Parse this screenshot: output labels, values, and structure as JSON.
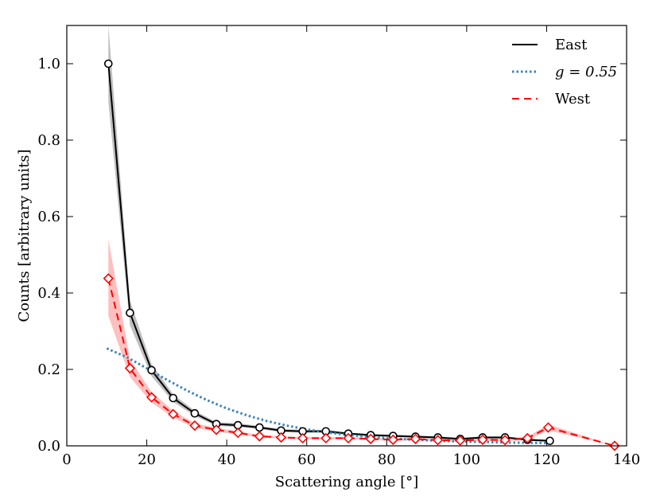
{
  "chart_data": {
    "type": "line",
    "title": "",
    "xlabel": "Scattering angle [°]",
    "ylabel": "Counts [arbitrary units]",
    "xlim": [
      0,
      140
    ],
    "ylim": [
      0,
      1.1
    ],
    "xticks": [
      0,
      20,
      40,
      60,
      80,
      100,
      120,
      140
    ],
    "yticks": [
      0.0,
      0.2,
      0.4,
      0.6,
      0.8,
      1.0
    ],
    "xtick_labels": [
      "0",
      "20",
      "40",
      "60",
      "80",
      "100",
      "120",
      "140"
    ],
    "ytick_labels": [
      "0.0",
      "0.2",
      "0.4",
      "0.6",
      "0.8",
      "1.0"
    ],
    "grid": false,
    "legend_position": "top-right",
    "series": [
      {
        "name": "East",
        "style": "solid",
        "color": "#000000",
        "marker": "circle",
        "band_color": "#aaaaaa",
        "x": [
          10.4,
          15.8,
          21.2,
          26.6,
          32.0,
          37.4,
          42.8,
          48.2,
          53.6,
          59.0,
          64.8,
          70.4,
          76.0,
          81.6,
          87.2,
          92.8,
          98.4,
          104.0,
          109.6,
          115.2,
          120.8
        ],
        "values": [
          1.0,
          0.348,
          0.198,
          0.125,
          0.085,
          0.057,
          0.054,
          0.048,
          0.04,
          0.038,
          0.038,
          0.032,
          0.028,
          0.026,
          0.024,
          0.022,
          0.018,
          0.022,
          0.022,
          0.016,
          0.013
        ],
        "band_low": [
          0.9,
          0.315,
          0.182,
          0.115,
          0.078,
          0.052,
          0.049,
          0.044,
          0.036,
          0.034,
          0.034,
          0.029,
          0.025,
          0.023,
          0.021,
          0.019,
          0.015,
          0.019,
          0.019,
          0.013,
          0.01
        ],
        "band_high": [
          1.1,
          0.38,
          0.214,
          0.135,
          0.092,
          0.062,
          0.059,
          0.052,
          0.044,
          0.042,
          0.042,
          0.035,
          0.031,
          0.029,
          0.027,
          0.025,
          0.021,
          0.025,
          0.025,
          0.019,
          0.016
        ]
      },
      {
        "name": "g = 0.55",
        "style": "dotted",
        "color": "#3b86b8",
        "marker": "none",
        "x": [
          10,
          15,
          20,
          25,
          30,
          35,
          40,
          45,
          50,
          55,
          60,
          65,
          70,
          75,
          80,
          85,
          90,
          95,
          100,
          105,
          110,
          115,
          120
        ],
        "values": [
          0.255,
          0.232,
          0.203,
          0.173,
          0.145,
          0.12,
          0.098,
          0.08,
          0.065,
          0.053,
          0.043,
          0.035,
          0.029,
          0.024,
          0.02,
          0.017,
          0.0145,
          0.0125,
          0.011,
          0.0098,
          0.0088,
          0.008,
          0.0073
        ]
      },
      {
        "name": "West",
        "style": "dashed",
        "color": "#ff0000",
        "marker": "diamond",
        "band_color": "#ffaaaa",
        "x": [
          10.4,
          15.8,
          21.2,
          26.6,
          32.0,
          37.4,
          42.8,
          48.2,
          53.6,
          59.0,
          64.8,
          70.4,
          76.0,
          81.6,
          87.2,
          92.8,
          98.4,
          104.0,
          109.6,
          115.2,
          120.4,
          137.0
        ],
        "values": [
          0.438,
          0.203,
          0.127,
          0.083,
          0.053,
          0.042,
          0.034,
          0.025,
          0.022,
          0.02,
          0.02,
          0.02,
          0.018,
          0.016,
          0.018,
          0.015,
          0.014,
          0.016,
          0.015,
          0.02,
          0.048,
          0.0
        ],
        "band_low": [
          0.34,
          0.18,
          0.113,
          0.074,
          0.047,
          0.037,
          0.03,
          0.022,
          0.019,
          0.017,
          0.017,
          0.017,
          0.015,
          0.013,
          0.015,
          0.012,
          0.011,
          0.013,
          0.012,
          0.016,
          0.04,
          0.0
        ],
        "band_high": [
          0.54,
          0.226,
          0.141,
          0.092,
          0.059,
          0.047,
          0.038,
          0.028,
          0.025,
          0.023,
          0.023,
          0.023,
          0.021,
          0.019,
          0.021,
          0.018,
          0.017,
          0.019,
          0.018,
          0.024,
          0.056,
          0.0
        ]
      }
    ],
    "legend": [
      {
        "label": "East",
        "italic": false
      },
      {
        "label": "g = 0.55",
        "italic": true
      },
      {
        "label": "West",
        "italic": false
      }
    ]
  }
}
